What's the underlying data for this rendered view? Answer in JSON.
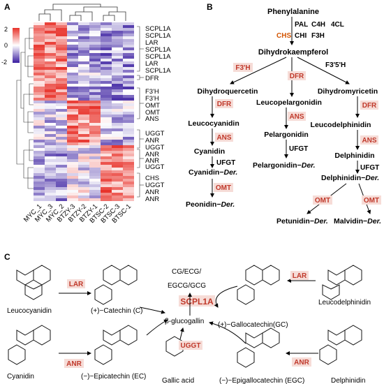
{
  "panels": {
    "a": "A",
    "b": "B",
    "c": "C"
  },
  "heatmap": {
    "legend_ticks": [
      "2",
      "0",
      "-2"
    ],
    "legend_colors": [
      "#e8332a",
      "#ffffff",
      "#3a1ea0"
    ],
    "samples": [
      "MYC_1",
      "MYC_3",
      "MYC_2",
      "BTZY-3",
      "BTZY-2",
      "BTZY-1",
      "BTSC-2",
      "BTSC-3",
      "BTSC-1"
    ],
    "row_groups": [
      {
        "labels": [
          "SCPL1A",
          "SCPL1A",
          "LAR",
          "SCPL1A",
          "SCPL1A",
          "LAR",
          "SCPL1A"
        ]
      },
      {
        "labels": [
          "DFR"
        ]
      },
      {
        "labels": [
          "F3'H",
          "F3'H",
          "OMT",
          "OMT",
          "ANS"
        ]
      },
      {
        "labels": [
          "UGGT",
          "ANR",
          "UGGT"
        ]
      },
      {
        "labels": [
          "ANR",
          "ANR",
          "UGGT"
        ]
      },
      {
        "labels": [
          "CHS",
          "UGGT",
          "ANR",
          "ANR"
        ]
      }
    ]
  },
  "pathway": {
    "phenylalanine": "Phenylalanine",
    "top_enzymes": [
      "PAL",
      "C4H",
      "4CL"
    ],
    "chs": "CHS",
    "chi_f3h": [
      "CHI",
      "F3H"
    ],
    "dihydrokaempferol": "Dihydrokaempferol",
    "f3h_prime": "F3'H",
    "dfr": "DFR",
    "f35h": "F3'5'H",
    "left": {
      "dihydroquercetin": "Dihydroquercetin",
      "dfr": "DFR",
      "leucocyanidin": "Leucocyanidin",
      "ans": "ANS",
      "cyanidin": "Cyanidin",
      "ufgt": "UFGT",
      "cyanidin_der": "Cyanidin−",
      "der": "Der.",
      "omt": "OMT",
      "peonidin_der": "Peonidin−"
    },
    "middle": {
      "leucopelargonidin": "Leucopelargonidin",
      "ans": "ANS",
      "pelargonidin": "Pelargonidin",
      "ufgt": "UFGT",
      "pelargonidin_der": "Pelargonidin−"
    },
    "right": {
      "dihydromyricetin": "Dihydromyricetin",
      "dfr": "DFR",
      "leucodelphinidin": "Leucodelphinidin",
      "ans": "ANS",
      "delphinidin": "Delphinidin",
      "ufgt": "UFGT",
      "delphinidin_der": "Delphinidin−",
      "omt_left": "OMT",
      "omt_right": "OMT",
      "petunidin_der": "Petunidin−",
      "malvidin_der": "Malvidin−"
    }
  },
  "panel_c": {
    "leucocyanidin": "Leucocyanidin",
    "lar_left": "LAR",
    "catechin": "(+)−Catechin (C)",
    "products_line1": "CG/ECG/",
    "products_line2": "EGCG/GCG",
    "scpl1a": "SCPL1A",
    "glucogallin": "β-glucogallin",
    "gallocatechin": "(+)−Gallocatechin(GC)",
    "lar_right": "LAR",
    "leucodelphinidin": "Leucodelphinidin",
    "cyanidin": "Cyanidin",
    "anr_left": "ANR",
    "epicatechin": "(−)−Epicatechin (EC)",
    "ugt": "UGGT",
    "gallic_acid": "Gallic acid",
    "egc": "(−)−Epigallocatechin (EGC)",
    "anr_right": "ANR",
    "delphinidin": "Delphinidin"
  }
}
